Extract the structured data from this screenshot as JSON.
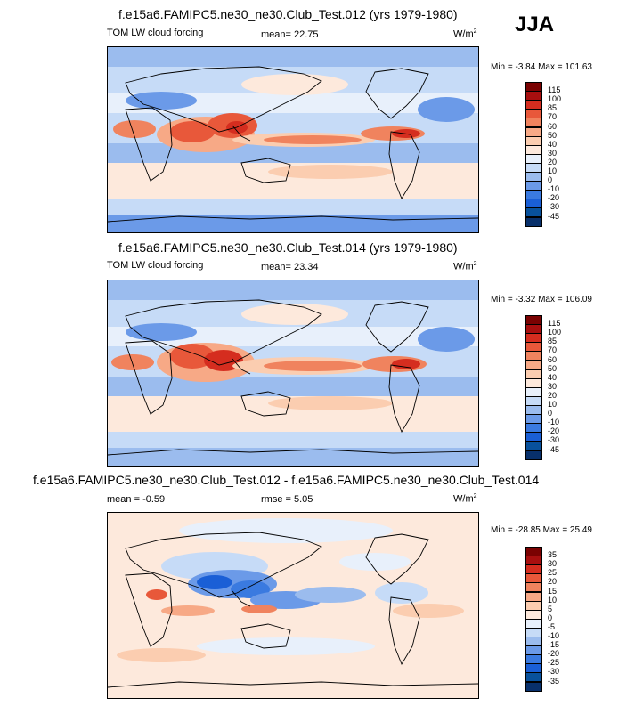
{
  "season": "JJA",
  "palette_main": [
    "#08306b",
    "#08519c",
    "#1a5fd6",
    "#3a7ae0",
    "#6b9ae8",
    "#9bbcee",
    "#c6dbf7",
    "#e8f0fb",
    "#fde9dc",
    "#fbcdb0",
    "#f7a986",
    "#f0835e",
    "#e8583a",
    "#d52d1f",
    "#a80f0f",
    "#7a0202"
  ],
  "palette_diff": [
    "#08306b",
    "#08519c",
    "#1a5fd6",
    "#3a7ae0",
    "#6b9ae8",
    "#9bbcee",
    "#c6dbf7",
    "#e8f0fb",
    "#fde9dc",
    "#fbcdb0",
    "#f7a986",
    "#f0835e",
    "#e8583a",
    "#d52d1f",
    "#a80f0f",
    "#7a0202"
  ],
  "panels": [
    {
      "title": "f.e15a6.FAMIPC5.ne30_ne30.Club_Test.012 (yrs 1979-1980)",
      "variable": "TOM LW cloud forcing",
      "stat_label": "mean=",
      "stat_value": "22.75",
      "stat2_label": "",
      "stat2_value": "",
      "units": "W/m",
      "units_sup": "2",
      "minmax": "Min =  -3.84 Max = 101.63",
      "levels": [
        "115",
        "100",
        "85",
        "70",
        "60",
        "50",
        "40",
        "30",
        "20",
        "10",
        "0",
        "-10",
        "-20",
        "-30",
        "-45"
      ]
    },
    {
      "title": "f.e15a6.FAMIPC5.ne30_ne30.Club_Test.014 (yrs 1979-1980)",
      "variable": "TOM LW cloud forcing",
      "stat_label": "mean=",
      "stat_value": "23.34",
      "stat2_label": "",
      "stat2_value": "",
      "units": "W/m",
      "units_sup": "2",
      "minmax": "Min =  -3.32 Max = 106.09",
      "levels": [
        "115",
        "100",
        "85",
        "70",
        "60",
        "50",
        "40",
        "30",
        "20",
        "10",
        "0",
        "-10",
        "-20",
        "-30",
        "-45"
      ]
    },
    {
      "title": "f.e15a6.FAMIPC5.ne30_ne30.Club_Test.012 - f.e15a6.FAMIPC5.ne30_ne30.Club_Test.014",
      "variable": "",
      "stat_label": "mean =",
      "stat_value": "-0.59",
      "stat2_label": "rmse =",
      "stat2_value": "5.05",
      "units": "W/m",
      "units_sup": "2",
      "minmax": "Min = -28.85 Max =  25.49",
      "levels": [
        "35",
        "30",
        "25",
        "20",
        "15",
        "10",
        "5",
        "0",
        "-5",
        "-10",
        "-15",
        "-20",
        "-25",
        "-30",
        "-35"
      ]
    }
  ]
}
